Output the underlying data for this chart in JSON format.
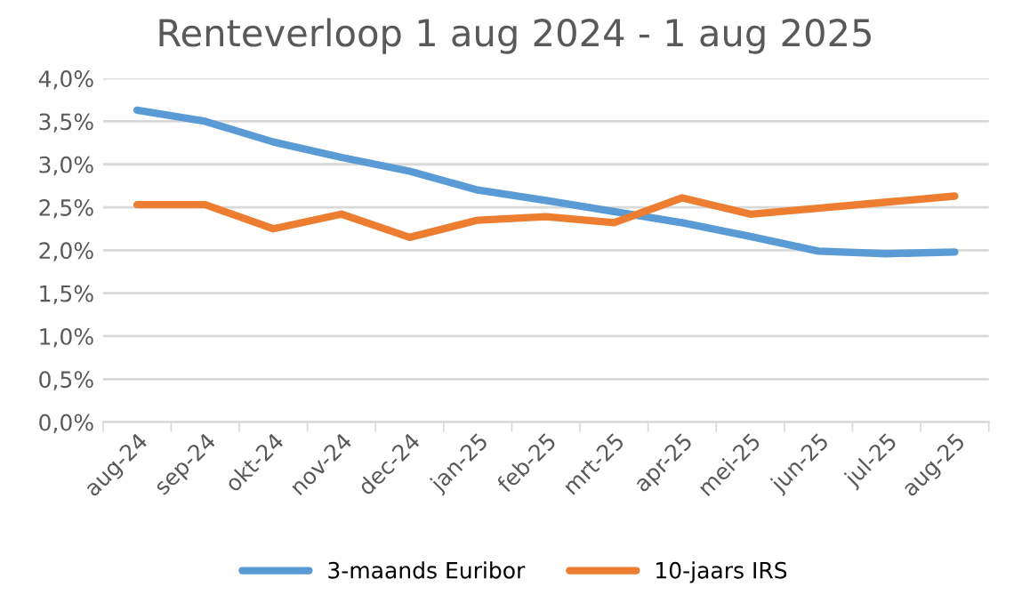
{
  "chart_data": {
    "type": "line",
    "title": "Renteverloop 1 aug 2024 - 1 aug 2025",
    "categories": [
      "aug-24",
      "sep-24",
      "okt-24",
      "nov-24",
      "dec-24",
      "jan-25",
      "feb-25",
      "mrt-25",
      "apr-25",
      "mei-25",
      "jun-25",
      "jul-25",
      "aug-25"
    ],
    "series": [
      {
        "name": "3-maands Euribor",
        "color": "#5b9bd5",
        "values": [
          3.63,
          3.5,
          3.26,
          3.08,
          2.92,
          2.7,
          2.58,
          2.45,
          2.32,
          2.16,
          1.99,
          1.96,
          1.98
        ]
      },
      {
        "name": "10-jaars IRS",
        "color": "#ed7d31",
        "values": [
          2.53,
          2.53,
          2.25,
          2.42,
          2.15,
          2.35,
          2.39,
          2.32,
          2.61,
          2.42,
          2.49,
          2.56,
          2.63
        ]
      }
    ],
    "ylim": [
      0,
      4
    ],
    "yticks": [
      {
        "value": 0,
        "label": "0,0%"
      },
      {
        "value": 0.5,
        "label": "0,5%"
      },
      {
        "value": 1,
        "label": "1,0%"
      },
      {
        "value": 1.5,
        "label": "1,5%"
      },
      {
        "value": 2,
        "label": "2,0%"
      },
      {
        "value": 2.5,
        "label": "2,5%"
      },
      {
        "value": 3,
        "label": "3,0%"
      },
      {
        "value": 3.5,
        "label": "3,5%"
      },
      {
        "value": 4,
        "label": "4,0%"
      }
    ],
    "grid": "y",
    "legend": "bottom",
    "marker": "none",
    "line_style": "solid"
  }
}
